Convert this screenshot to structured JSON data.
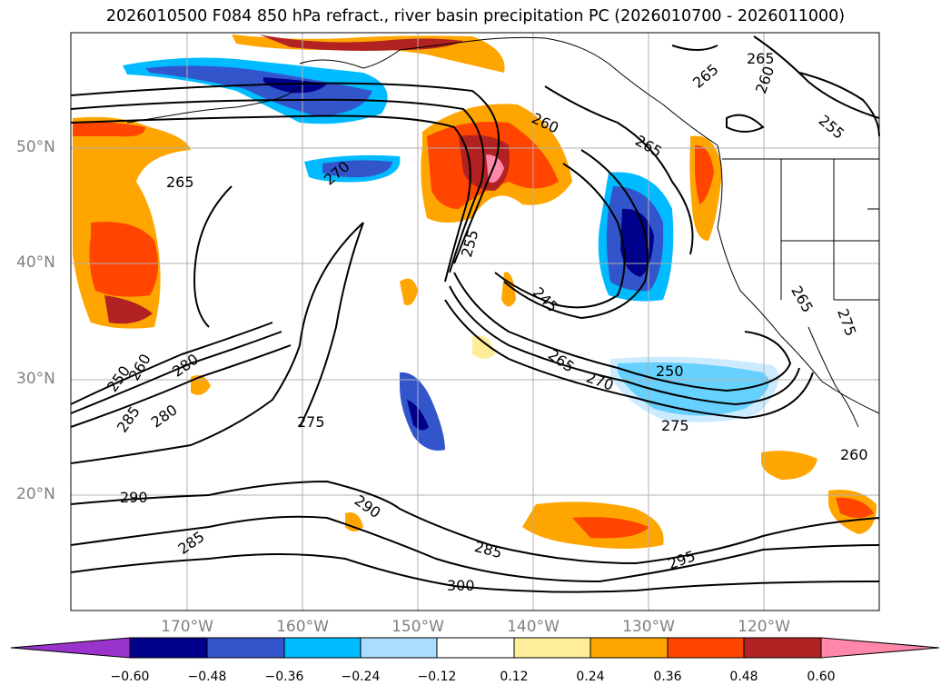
{
  "title": "2026010500 F084 850 hPa refract., river basin precipitation PC (2026010700 - 2026011000)",
  "lat_labels": [
    "50°N",
    "40°N",
    "30°N",
    "20°N"
  ],
  "lon_labels": [
    "170°W",
    "160°W",
    "150°W",
    "140°W",
    "130°W",
    "120°W"
  ],
  "colorbar": {
    "ticks": [
      "−0.60",
      "−0.48",
      "−0.36",
      "−0.24",
      "−0.12",
      "0.12",
      "0.24",
      "0.36",
      "0.48",
      "0.60"
    ],
    "colors": [
      "#9933cc",
      "#00008b",
      "#3355cc",
      "#00bbff",
      "#aaddff",
      "#ffffff",
      "#ffee99",
      "#ffa500",
      "#ff4500",
      "#b22222",
      "#ff88aa"
    ]
  },
  "contour_labels": [
    "265",
    "265",
    "260",
    "255",
    "260",
    "265",
    "270",
    "265",
    "255",
    "245",
    "265",
    "270",
    "250",
    "275",
    "280",
    "285",
    "280",
    "250",
    "260",
    "275",
    "290",
    "290",
    "285",
    "285",
    "300",
    "295",
    "260",
    "265",
    "275"
  ],
  "colors": {
    "grid": "#b0b0b0",
    "label_gray": "#808080",
    "contour": "#000000"
  }
}
